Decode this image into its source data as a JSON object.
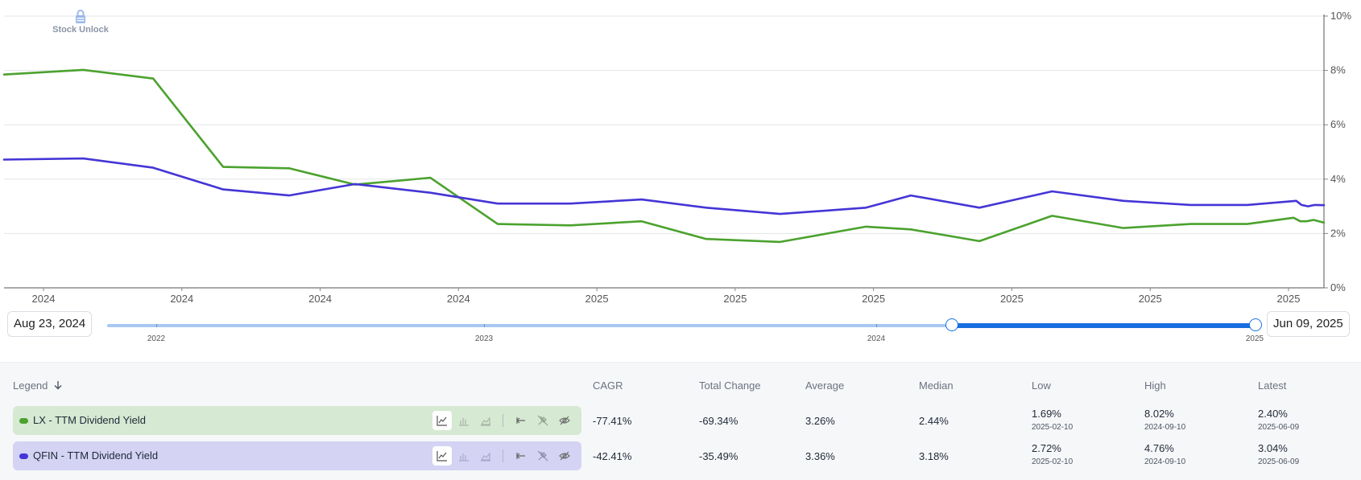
{
  "brand": {
    "watermark_icon": "lock-icon",
    "watermark_text": "Stock Unlock"
  },
  "chart_data": {
    "type": "line",
    "title": "",
    "xlabel": "",
    "ylabel": "",
    "x_tick_labels": [
      "2024",
      "2024",
      "2024",
      "2024",
      "2025",
      "2025",
      "2025",
      "2025",
      "2025",
      "2025"
    ],
    "y_ticks": [
      "0%",
      "2%",
      "4%",
      "6%",
      "8%",
      "10%"
    ],
    "ylim": [
      0,
      10
    ],
    "x_range": [
      0,
      100
    ],
    "grid": true,
    "series": [
      {
        "name": "LX - TTM Dividend Yield",
        "color": "#4ba22e",
        "x": [
          0,
          6,
          11.3,
          16.6,
          21.6,
          26.6,
          32.3,
          37.4,
          42.9,
          48.3,
          53.2,
          58.8,
          65.3,
          68.7,
          73.9,
          79.4,
          84.8,
          89.9,
          94.2,
          97.7,
          98.2,
          98.7,
          99.2,
          100
        ],
        "y": [
          7.85,
          8.02,
          7.7,
          4.45,
          4.4,
          3.8,
          4.05,
          2.35,
          2.3,
          2.45,
          1.8,
          1.69,
          2.25,
          2.15,
          1.72,
          2.65,
          2.2,
          2.35,
          2.35,
          2.58,
          2.45,
          2.45,
          2.5,
          2.4
        ]
      },
      {
        "name": "QFIN - TTM Dividend Yield",
        "color": "#4535d6",
        "x": [
          0,
          6,
          11.3,
          16.6,
          21.6,
          26.6,
          32.3,
          37.4,
          42.9,
          48.3,
          53.2,
          58.8,
          65.3,
          68.7,
          73.9,
          79.4,
          84.8,
          89.9,
          94.2,
          97.9,
          98.3,
          98.8,
          99.3,
          100
        ],
        "y": [
          4.72,
          4.76,
          4.42,
          3.62,
          3.4,
          3.82,
          3.5,
          3.1,
          3.1,
          3.25,
          2.95,
          2.72,
          2.95,
          3.4,
          2.95,
          3.55,
          3.2,
          3.05,
          3.05,
          3.2,
          3.05,
          3.0,
          3.05,
          3.04
        ]
      }
    ]
  },
  "range": {
    "start_date": "Aug 23, 2024",
    "end_date": "Jun 09, 2025",
    "years": [
      "2022",
      "2023",
      "2024",
      "2025"
    ],
    "selection_start": 0.75,
    "selection_end": 1.0
  },
  "legend": {
    "title": "Legend",
    "sort_icon": "arrow-down-icon",
    "columns": [
      "CAGR",
      "Total Change",
      "Average",
      "Median",
      "Low",
      "High",
      "Latest"
    ],
    "tools": [
      "line-chart-icon",
      "bar-chart-icon",
      "area-chart-icon",
      "range-icon",
      "no-pin-icon",
      "eye-icon"
    ],
    "rows": [
      {
        "label": "LX - TTM Dividend Yield",
        "color": "#4ba22e",
        "cagr": "-77.41%",
        "total_change": "-69.34%",
        "average": "3.26%",
        "median": "2.44%",
        "low": "1.69%",
        "low_date": "2025-02-10",
        "high": "8.02%",
        "high_date": "2024-09-10",
        "latest": "2.40%",
        "latest_date": "2025-06-09"
      },
      {
        "label": "QFIN - TTM Dividend Yield",
        "color": "#4535d6",
        "cagr": "-42.41%",
        "total_change": "-35.49%",
        "average": "3.36%",
        "median": "3.18%",
        "low": "2.72%",
        "low_date": "2025-02-10",
        "high": "4.76%",
        "high_date": "2024-09-10",
        "latest": "3.04%",
        "latest_date": "2025-06-09"
      }
    ]
  }
}
